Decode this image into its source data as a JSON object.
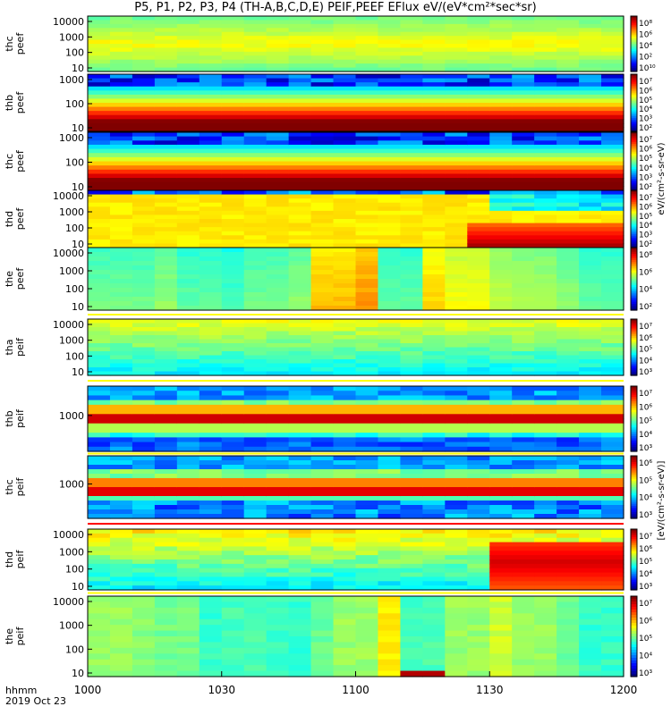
{
  "title": "P5, P1, P2, P3, P4 (TH-A,B,C,D,E) PEIF,PEEF EFlux eV/(eV*cm²*sec*sr)",
  "chart_data": {
    "type": "heatmap",
    "x_ticks": [
      "1000",
      "1030",
      "1100",
      "1130",
      "1200"
    ],
    "x_range_minutes": [
      0,
      120
    ],
    "x_label_line1": "hhmm",
    "x_label_line2": "2019 Oct 23",
    "colorbar_label_electron": "eV/(cm²-s-sr-eV)",
    "colorbar_label_ion": "[eV/(cm²-s-sr-eV)]",
    "panels": [
      {
        "probe": "thc",
        "species": "peef",
        "yticks": [
          "10000",
          "1000",
          "100",
          "10"
        ],
        "cbar_ticks": [
          "10⁸",
          "10⁶",
          "10⁴",
          "10²",
          "10¹⁰"
        ],
        "palette": "green"
      },
      {
        "probe": "thb",
        "species": "peef",
        "yticks": [
          "1000",
          "100",
          "10"
        ],
        "cbar_ticks": [
          "10⁷",
          "10⁶",
          "10⁵",
          "10⁴",
          "10³",
          "10²"
        ],
        "palette": "hot"
      },
      {
        "probe": "thc",
        "species": "peef",
        "yticks": [
          "1000",
          "100",
          "10"
        ],
        "cbar_ticks": [
          "10⁷",
          "10⁶",
          "10⁵",
          "10⁴",
          "10³",
          "10²"
        ],
        "palette": "hot"
      },
      {
        "probe": "thd",
        "species": "peef",
        "yticks": [
          "10000",
          "1000",
          "100",
          "10"
        ],
        "cbar_ticks": [
          "10⁷",
          "10⁶",
          "10⁵",
          "10⁴",
          "10³",
          "10²"
        ],
        "palette": "yellowred"
      },
      {
        "probe": "the",
        "species": "peef",
        "yticks": [
          "10000",
          "1000",
          "100",
          "10"
        ],
        "cbar_ticks": [
          "10⁸",
          "10⁶",
          "10⁴",
          "10²"
        ],
        "palette": "blocks"
      },
      {
        "probe": "tha",
        "species": "peif",
        "yticks": [
          "10000",
          "1000",
          "100",
          "10"
        ],
        "cbar_ticks": [
          "10⁷",
          "10⁶",
          "10⁵",
          "10⁴",
          "10³"
        ],
        "palette": "cyan"
      },
      {
        "probe": "thb",
        "species": "peif",
        "yticks": [
          "1000"
        ],
        "cbar_ticks": [
          "10⁷",
          "10⁶",
          "10⁵",
          "10⁴",
          "10³"
        ],
        "palette": "bands"
      },
      {
        "probe": "thc",
        "species": "peif",
        "yticks": [
          "1000"
        ],
        "cbar_ticks": [
          "10⁶",
          "10⁵",
          "10⁴",
          "10³"
        ],
        "palette": "bands2"
      },
      {
        "probe": "thd",
        "species": "peif",
        "yticks": [
          "10000",
          "1000",
          "100",
          "10"
        ],
        "cbar_ticks": [
          "10⁷",
          "10⁶",
          "10⁵",
          "10⁴",
          "10³"
        ],
        "palette": "cyanred"
      },
      {
        "probe": "the",
        "species": "peif",
        "yticks": [
          "10000",
          "1000",
          "100",
          "10"
        ],
        "cbar_ticks": [
          "10⁷",
          "10⁶",
          "10⁵",
          "10⁴",
          "10³"
        ],
        "palette": "blocks2"
      }
    ]
  }
}
